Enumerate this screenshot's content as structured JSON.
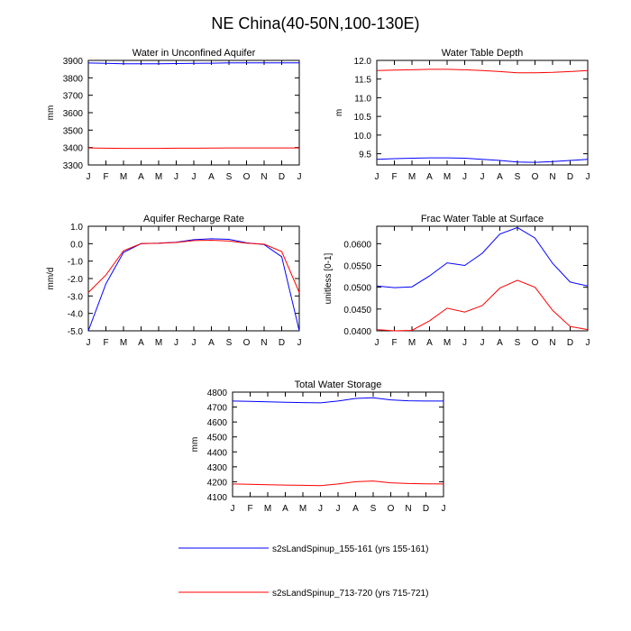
{
  "title": "NE China(40-50N,100-130E)",
  "colors": {
    "series1": "#0000ff",
    "series2": "#ff0000",
    "axis": "#000000",
    "background": "#ffffff"
  },
  "legend": {
    "entries": [
      {
        "label": "s2sLandSpinup_155-161 (yrs 155-161)",
        "color": "#0000ff"
      },
      {
        "label": "s2sLandSpinup_713-720 (yrs 715-721)",
        "color": "#ff0000"
      }
    ]
  },
  "chart_data": [
    {
      "type": "line",
      "title": "Water in Unconfined Aquifer",
      "xlabel": "",
      "ylabel": "mm",
      "categories": [
        "J",
        "F",
        "M",
        "A",
        "M",
        "J",
        "J",
        "A",
        "S",
        "O",
        "N",
        "D",
        "J"
      ],
      "ylim": [
        3300,
        3900
      ],
      "yticks": [
        3300,
        3400,
        3500,
        3600,
        3700,
        3800,
        3900
      ],
      "ytick_labels": [
        "3300",
        "3400",
        "3500",
        "3600",
        "3700",
        "3800",
        "3900"
      ],
      "series": [
        {
          "name": "s2sLandSpinup_155-161 (yrs 155-161)",
          "color": "#0000ff",
          "values": [
            3885,
            3883,
            3881,
            3881,
            3881,
            3882,
            3883,
            3884,
            3886,
            3886,
            3886,
            3886,
            3886
          ]
        },
        {
          "name": "s2sLandSpinup_713-720 (yrs 715-721)",
          "color": "#ff0000",
          "values": [
            3398,
            3396,
            3395,
            3395,
            3395,
            3396,
            3396,
            3397,
            3398,
            3398,
            3398,
            3398,
            3398
          ]
        }
      ]
    },
    {
      "type": "line",
      "title": "Water Table Depth",
      "xlabel": "",
      "ylabel": "m",
      "categories": [
        "J",
        "F",
        "M",
        "A",
        "M",
        "J",
        "J",
        "A",
        "S",
        "O",
        "N",
        "D",
        "J"
      ],
      "ylim": [
        9.2,
        12.0
      ],
      "yticks": [
        9.5,
        10.0,
        10.5,
        11.0,
        11.5,
        12.0
      ],
      "ytick_labels": [
        "9.5",
        "10.0",
        "10.5",
        "11.0",
        "11.5",
        "12.0"
      ],
      "series": [
        {
          "name": "s2sLandSpinup_155-161 (yrs 155-161)",
          "color": "#0000ff",
          "values": [
            9.35,
            9.37,
            9.38,
            9.39,
            9.39,
            9.38,
            9.35,
            9.32,
            9.28,
            9.27,
            9.29,
            9.32,
            9.35
          ]
        },
        {
          "name": "s2sLandSpinup_713-720 (yrs 715-721)",
          "color": "#ff0000",
          "values": [
            11.73,
            11.74,
            11.75,
            11.76,
            11.76,
            11.75,
            11.73,
            11.7,
            11.67,
            11.67,
            11.68,
            11.7,
            11.73
          ]
        }
      ]
    },
    {
      "type": "line",
      "title": "Aquifer Recharge Rate",
      "xlabel": "",
      "ylabel": "mm/d",
      "categories": [
        "J",
        "F",
        "M",
        "A",
        "M",
        "J",
        "J",
        "A",
        "S",
        "O",
        "N",
        "D",
        "J"
      ],
      "ylim": [
        -5.0,
        1.0
      ],
      "yticks": [
        -5,
        -4,
        -3,
        -2,
        -1,
        0,
        1
      ],
      "ytick_labels": [
        "-5.0",
        "-4.0",
        "-3.0",
        "-2.0",
        "-1.0",
        "0.0",
        "1.0"
      ],
      "series": [
        {
          "name": "s2sLandSpinup_155-161 (yrs 155-161)",
          "color": "#0000ff",
          "values": [
            -5.0,
            -2.3,
            -0.5,
            0.0,
            0.03,
            0.08,
            0.23,
            0.28,
            0.25,
            0.05,
            -0.05,
            -0.75,
            -5.0
          ]
        },
        {
          "name": "s2sLandSpinup_713-720 (yrs 715-721)",
          "color": "#ff0000",
          "values": [
            -2.8,
            -1.8,
            -0.4,
            0.0,
            0.02,
            0.07,
            0.18,
            0.2,
            0.15,
            0.03,
            -0.03,
            -0.45,
            -2.8
          ]
        }
      ]
    },
    {
      "type": "line",
      "title": "Frac Water Table at Surface",
      "xlabel": "",
      "ylabel": "unitless [0-1]",
      "categories": [
        "J",
        "F",
        "M",
        "A",
        "M",
        "J",
        "J",
        "A",
        "S",
        "O",
        "N",
        "D",
        "J"
      ],
      "ylim": [
        0.04,
        0.064
      ],
      "yticks": [
        0.04,
        0.045,
        0.05,
        0.055,
        0.06
      ],
      "ytick_labels": [
        "0.0400",
        "0.0450",
        "0.0500",
        "0.0550",
        "0.0600"
      ],
      "series": [
        {
          "name": "s2sLandSpinup_155-161 (yrs 155-161)",
          "color": "#0000ff",
          "values": [
            0.0503,
            0.0499,
            0.0501,
            0.0526,
            0.0556,
            0.055,
            0.0578,
            0.0622,
            0.0637,
            0.0613,
            0.0555,
            0.0512,
            0.0503
          ]
        },
        {
          "name": "s2sLandSpinup_713-720 (yrs 715-721)",
          "color": "#ff0000",
          "values": [
            0.0403,
            0.04,
            0.0401,
            0.0423,
            0.0452,
            0.0443,
            0.0458,
            0.0498,
            0.0516,
            0.05,
            0.0447,
            0.041,
            0.0403
          ]
        }
      ]
    },
    {
      "type": "line",
      "title": "Total Water Storage",
      "xlabel": "",
      "ylabel": "mm",
      "categories": [
        "J",
        "F",
        "M",
        "A",
        "M",
        "J",
        "J",
        "A",
        "S",
        "O",
        "N",
        "D",
        "J"
      ],
      "ylim": [
        4100,
        4800
      ],
      "yticks": [
        4100,
        4200,
        4300,
        4400,
        4500,
        4600,
        4700,
        4800
      ],
      "ytick_labels": [
        "4100",
        "4200",
        "4300",
        "4400",
        "4500",
        "4600",
        "4700",
        "4800"
      ],
      "series": [
        {
          "name": "s2sLandSpinup_155-161 (yrs 155-161)",
          "color": "#0000ff",
          "values": [
            4740,
            4738,
            4735,
            4732,
            4730,
            4728,
            4740,
            4758,
            4762,
            4748,
            4742,
            4740,
            4740
          ]
        },
        {
          "name": "s2sLandSpinup_713-720 (yrs 715-721)",
          "color": "#ff0000",
          "values": [
            4185,
            4183,
            4180,
            4178,
            4176,
            4174,
            4185,
            4200,
            4205,
            4193,
            4188,
            4186,
            4185
          ]
        }
      ]
    }
  ]
}
